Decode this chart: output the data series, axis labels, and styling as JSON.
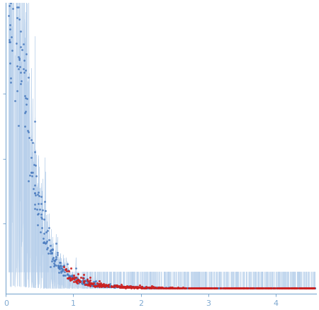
{
  "xlim": [
    0,
    4.6
  ],
  "xlabel": "",
  "ylabel": "",
  "title": "",
  "background_color": "#ffffff",
  "error_bar_color": "#b8d0eb",
  "data_dot_color": "#4a7bbf",
  "fit_dot_color": "#cc2222",
  "dot_size": 4,
  "fit_dot_size": 5,
  "x_ticks": [
    0,
    1,
    2,
    3,
    4
  ],
  "n_data_points": 900,
  "n_fit_points": 500,
  "seed_data": 12,
  "seed_fit": 77,
  "q_min": 0.04,
  "q_max": 4.58,
  "q_fit_min": 0.85,
  "q_fit_max": 4.58,
  "ax_tick_color": "#7da8d0",
  "spine_color": "#7da8d0",
  "y_tick_labels": [
    "",
    "",
    ""
  ],
  "y_tick_positions": [
    0.25,
    0.5,
    0.75
  ]
}
